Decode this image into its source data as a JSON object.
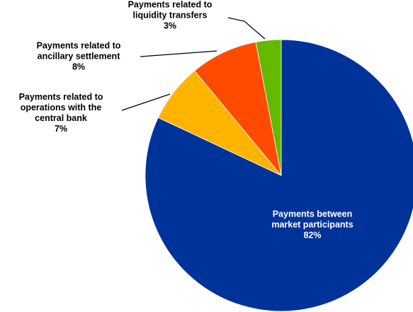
{
  "chart_data": {
    "type": "pie",
    "title": "",
    "slices": [
      {
        "label_lines": [
          "Payments between",
          "market participants"
        ],
        "pct_label": "82%",
        "value": 82,
        "color": "#003399"
      },
      {
        "label_lines": [
          "Payments related to",
          "operations with the",
          "central bank"
        ],
        "pct_label": "7%",
        "value": 7,
        "color": "#FFB400"
      },
      {
        "label_lines": [
          "Payments related to",
          "ancillary settlement"
        ],
        "pct_label": "8%",
        "value": 8,
        "color": "#FF4B00"
      },
      {
        "label_lines": [
          "Payments related to",
          "liquidity transfers"
        ],
        "pct_label": "3%",
        "value": 3,
        "color": "#65B800"
      }
    ]
  }
}
